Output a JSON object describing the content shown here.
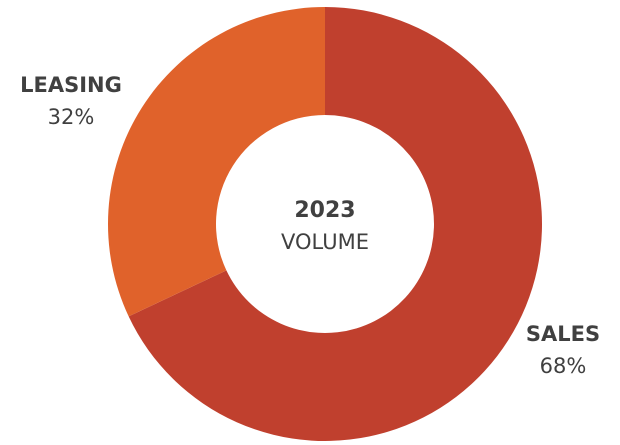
{
  "chart_data": {
    "type": "pie",
    "style": "donut",
    "center_title": "2023",
    "center_subtitle": "VOLUME",
    "slices": [
      {
        "label": "SALES",
        "value": 68,
        "value_label": "68%",
        "color": "#c0402e"
      },
      {
        "label": "LEASING",
        "value": 32,
        "value_label": "32%",
        "color": "#e0622b"
      }
    ]
  }
}
